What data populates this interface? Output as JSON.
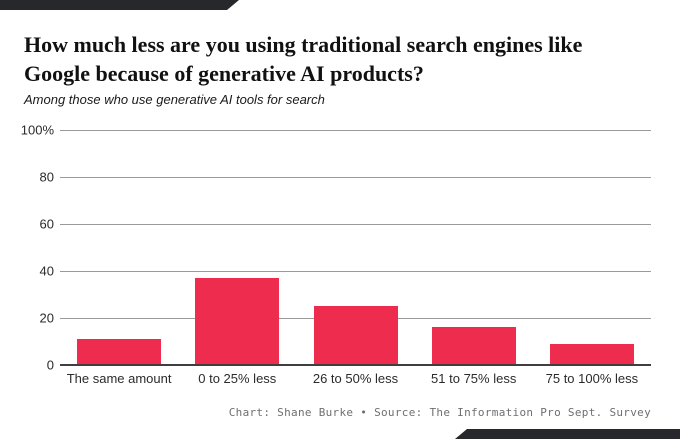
{
  "header": {
    "title": "How much less are you using traditional search engines like Google because of generative AI products?",
    "subtitle": "Among those who use generative AI tools for search"
  },
  "chart_data": {
    "type": "bar",
    "title": "How much less are you using traditional search engines like Google because of generative AI products?",
    "subtitle": "Among those who use generative AI tools for search",
    "categories": [
      "The same amount",
      "0 to 25% less",
      "26 to 50% less",
      "51 to 75% less",
      "75 to 100% less"
    ],
    "values": [
      11,
      37,
      25,
      16,
      9
    ],
    "xlabel": "",
    "ylabel": "",
    "ylim": [
      0,
      100
    ],
    "yticks": [
      0,
      20,
      40,
      60,
      80,
      100
    ],
    "ytick_labels": [
      "0",
      "20",
      "40",
      "60",
      "80",
      "100%"
    ],
    "grid": "horizontal",
    "legend": "none",
    "bar_color": "#ee2c4d"
  },
  "footer": {
    "credit": "Chart: Shane Burke • Source: The Information Pro Sept. Survey"
  },
  "colors": {
    "bar": "#ee2c4d",
    "accent": "#26282b",
    "gridline": "#9a9a9a",
    "baseline": "#3f3f3f",
    "credit_text": "#6f6f6f"
  }
}
